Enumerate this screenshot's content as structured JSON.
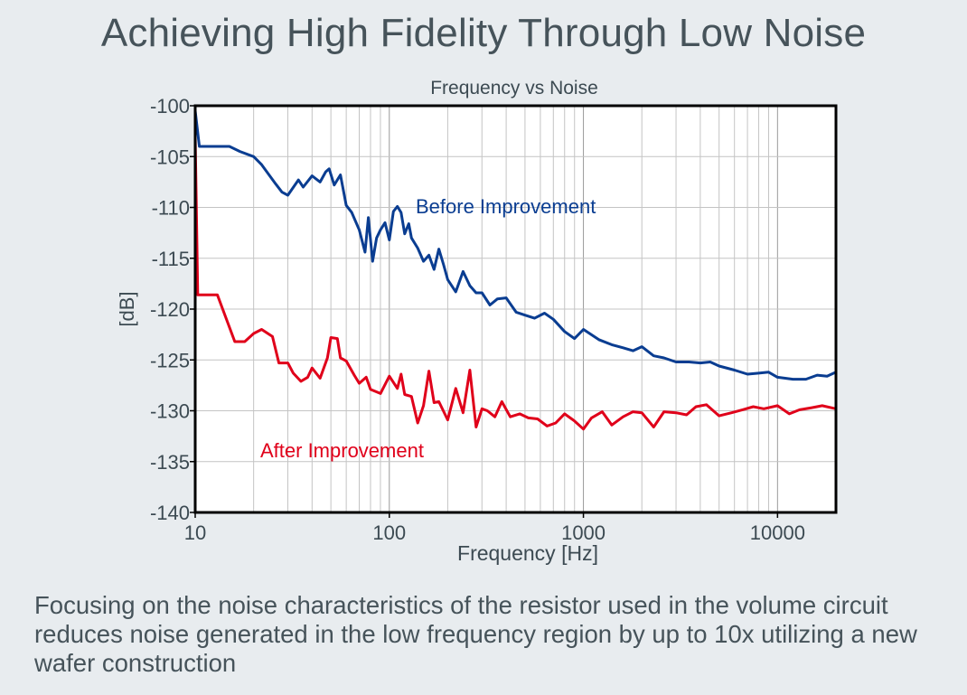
{
  "page": {
    "title": "Achieving High Fidelity Through Low Noise",
    "caption": "Focusing on the noise characteristics of the resistor used in the volume circuit reduces noise generated in the low frequency region by up to 10x utilizing a new wafer construction"
  },
  "chart_data": {
    "type": "line",
    "title": "Frequency vs Noise",
    "xlabel": "Frequency [Hz]",
    "ylabel": "[dB]",
    "xscale": "log",
    "xlim": [
      10,
      20000
    ],
    "ylim": [
      -140,
      -100
    ],
    "xticks": [
      10,
      100,
      1000,
      10000
    ],
    "xtick_labels": [
      "10",
      "100",
      "1000",
      "10000"
    ],
    "yticks": [
      -100,
      -105,
      -110,
      -115,
      -120,
      -125,
      -130,
      -135,
      -140
    ],
    "ytick_labels": [
      "-100",
      "-105",
      "-110",
      "-115",
      "-120",
      "-125",
      "-130",
      "-135",
      "-140"
    ],
    "grid": true,
    "background": "#ffffff",
    "series": [
      {
        "name": "Before Improvement",
        "color": "#0a3d91",
        "label_style": "annotation",
        "x": [
          10,
          10.5,
          15,
          17,
          20,
          22,
          26,
          28,
          30,
          34,
          36,
          40,
          44,
          47,
          49,
          52,
          56,
          60,
          64,
          70,
          75,
          78,
          82,
          86,
          90,
          95,
          100,
          105,
          110,
          115,
          120,
          126,
          130,
          140,
          150,
          160,
          170,
          180,
          190,
          200,
          220,
          240,
          260,
          280,
          300,
          330,
          360,
          400,
          450,
          500,
          560,
          630,
          700,
          800,
          900,
          1000,
          1200,
          1400,
          1600,
          1800,
          2000,
          2300,
          2600,
          3000,
          3500,
          4000,
          4500,
          5000,
          6000,
          7000,
          8000,
          9000,
          10000,
          12000,
          14000,
          16000,
          18000,
          20000
        ],
        "y": [
          -100.5,
          -104,
          -104,
          -104.5,
          -105,
          -105.8,
          -107.7,
          -108.5,
          -108.8,
          -107.3,
          -108,
          -106.9,
          -107.5,
          -106.5,
          -106.2,
          -107.8,
          -106.8,
          -109.8,
          -110.5,
          -112.2,
          -114.4,
          -111,
          -115.3,
          -113,
          -112.2,
          -111.5,
          -113.2,
          -110.4,
          -109.9,
          -110.5,
          -112.6,
          -111.6,
          -113,
          -114,
          -115.3,
          -114.7,
          -116.1,
          -114.1,
          -115.6,
          -117.1,
          -118.3,
          -116.3,
          -117.7,
          -118.4,
          -118.4,
          -119.6,
          -119,
          -118.9,
          -120.3,
          -120.6,
          -120.9,
          -120.4,
          -121,
          -122.2,
          -122.9,
          -122,
          -123,
          -123.5,
          -123.8,
          -124.1,
          -123.7,
          -124.6,
          -124.8,
          -125.2,
          -125.2,
          -125.3,
          -125.2,
          -125.6,
          -126,
          -126.4,
          -126.3,
          -126.2,
          -126.7,
          -126.9,
          -126.9,
          -126.5,
          -126.6,
          -126.2
        ]
      },
      {
        "name": "After Improvement",
        "color": "#e0001a",
        "label_style": "annotation",
        "x": [
          10,
          10.3,
          13,
          16,
          18,
          20,
          22,
          25,
          27,
          30,
          32,
          35,
          38,
          40,
          44,
          48,
          50,
          54,
          56,
          60,
          66,
          70,
          76,
          80,
          90,
          100,
          110,
          115,
          120,
          130,
          140,
          150,
          160,
          170,
          180,
          200,
          220,
          240,
          260,
          280,
          300,
          320,
          350,
          380,
          420,
          470,
          520,
          580,
          650,
          720,
          800,
          900,
          1000,
          1100,
          1250,
          1400,
          1600,
          1800,
          2000,
          2300,
          2600,
          3000,
          3400,
          3800,
          4300,
          5000,
          5800,
          6600,
          7500,
          8500,
          10000,
          11500,
          13000,
          15000,
          17000,
          20000
        ],
        "y": [
          -103,
          -118.6,
          -118.6,
          -123.2,
          -123.2,
          -122.4,
          -122,
          -122.7,
          -125.3,
          -125.3,
          -126.3,
          -127.1,
          -126.7,
          -125.8,
          -126.8,
          -124.8,
          -122.8,
          -122.9,
          -124.8,
          -125.1,
          -126.5,
          -127.3,
          -126.7,
          -127.9,
          -128.3,
          -126.6,
          -127.8,
          -126.4,
          -128.4,
          -128.6,
          -131.2,
          -129.5,
          -126.1,
          -129.2,
          -129.1,
          -130.9,
          -127.8,
          -130.2,
          -126,
          -131.6,
          -129.8,
          -130,
          -130.6,
          -129.1,
          -130.6,
          -130.3,
          -130.7,
          -130.8,
          -131.5,
          -131.2,
          -130.3,
          -131,
          -131.8,
          -130.7,
          -130.1,
          -131.4,
          -130.6,
          -130.1,
          -130.2,
          -131.6,
          -130.1,
          -130.2,
          -130.4,
          -129.6,
          -129.4,
          -130.5,
          -130.2,
          -129.9,
          -129.6,
          -129.8,
          -129.5,
          -130.3,
          -129.9,
          -129.7,
          -129.5,
          -129.8
        ]
      }
    ]
  }
}
